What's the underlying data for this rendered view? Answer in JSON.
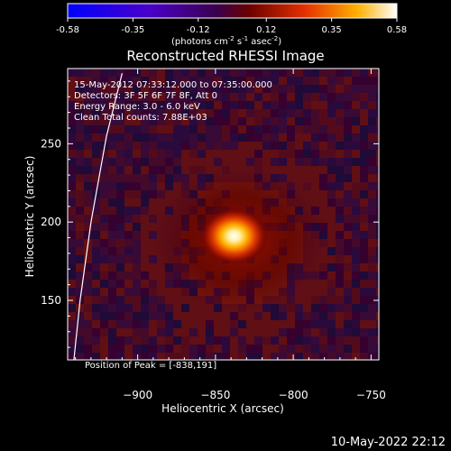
{
  "colorbar": {
    "ticks": [
      "-0.58",
      "-0.35",
      "-0.12",
      "0.12",
      "0.35",
      "0.58"
    ],
    "unit_label": "(photons cm",
    "unit_exp1": "-2",
    "unit_mid": " s",
    "unit_exp2": "-1",
    "unit_mid2": " asec",
    "unit_exp3": "-2",
    "unit_end": ")"
  },
  "annotations": {
    "time_range": "15-May-2012 07:33:12.000 to 07:35:00.000",
    "detectors": "Detectors: 3F 5F 6F 7F 8F, Att 0",
    "energy": "Energy Range: 3.0 - 6.0 keV",
    "clean": "Clean    Total counts: 7.88E+03",
    "peak": "Position of Peak = [-838,191]"
  },
  "footer": {
    "timestamp": "10-May-2022 22:12"
  },
  "chart_data": {
    "type": "heatmap",
    "title": "Reconstructed RHESSI Image",
    "xlabel": "Heliocentric X (arcsec)",
    "ylabel": "Heliocentric Y (arcsec)",
    "xlim": [
      -945,
      -745
    ],
    "ylim": [
      112,
      298
    ],
    "xticks": [
      -900,
      -850,
      -800,
      -750
    ],
    "xtick_labels": [
      "−900",
      "−850",
      "−800",
      "−750"
    ],
    "yticks": [
      150,
      200,
      250
    ],
    "ytick_labels": [
      "150",
      "200",
      "250"
    ],
    "colorscale_range": [
      -0.58,
      0.58
    ],
    "peak": {
      "x": -838,
      "y": 191,
      "value": 0.58
    },
    "limb": [
      [
        -910,
        295
      ],
      [
        -920,
        255
      ],
      [
        -930,
        200
      ],
      [
        -937,
        150
      ],
      [
        -941,
        112
      ]
    ]
  }
}
